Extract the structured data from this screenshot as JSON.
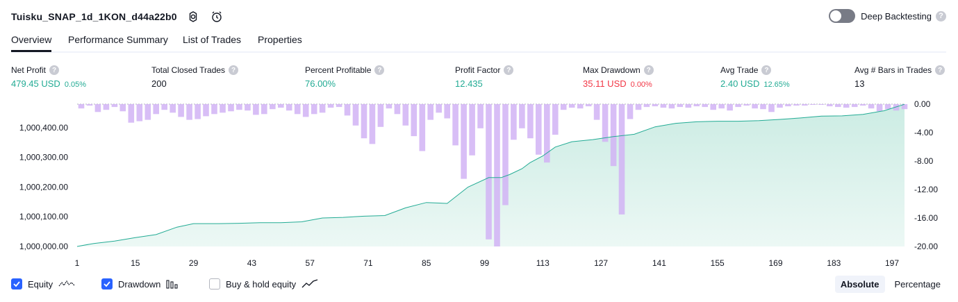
{
  "header": {
    "title": "Tuisku_SNAP_1d_1KON_d44a22b0",
    "deep_backtesting_label": "Deep Backtesting",
    "deep_backtesting_on": false
  },
  "tabs": [
    {
      "label": "Overview",
      "active": true
    },
    {
      "label": "Performance Summary",
      "active": false
    },
    {
      "label": "List of Trades",
      "active": false
    },
    {
      "label": "Properties",
      "active": false
    }
  ],
  "metrics": [
    {
      "label": "Net Profit",
      "value": "479.45 USD",
      "pct": "0.05%",
      "color": "#22ab94"
    },
    {
      "label": "Total Closed Trades",
      "value": "200",
      "pct": "",
      "color": "#131722"
    },
    {
      "label": "Percent Profitable",
      "value": "76.00%",
      "pct": "",
      "color": "#22ab94"
    },
    {
      "label": "Profit Factor",
      "value": "12.435",
      "pct": "",
      "color": "#22ab94"
    },
    {
      "label": "Max Drawdown",
      "value": "35.11 USD",
      "pct": "0.00%",
      "color": "#f23645"
    },
    {
      "label": "Avg Trade",
      "value": "2.40 USD",
      "pct": "12.65%",
      "color": "#22ab94"
    },
    {
      "label": "Avg # Bars in Trades",
      "value": "13",
      "pct": "",
      "color": "#131722"
    }
  ],
  "legend": {
    "equity_label": "Equity",
    "equity_checked": true,
    "drawdown_label": "Drawdown",
    "drawdown_checked": true,
    "buyhold_label": "Buy & hold equity",
    "buyhold_checked": false
  },
  "view_toggle": {
    "absolute_label": "Absolute",
    "percentage_label": "Percentage",
    "active": "Absolute"
  },
  "icons": {
    "settings": "gear-icon",
    "snapshot": "camera-refresh-icon",
    "help": "question-icon"
  },
  "colors": {
    "equity_line": "#22ab94",
    "equity_fill": "#c9ebe2",
    "drawdown_bar": "#d1b3f5",
    "positive": "#22ab94",
    "negative": "#f23645",
    "accent": "#2962ff"
  },
  "chart_data": {
    "type": "area",
    "x_ticks": [
      1,
      15,
      29,
      43,
      57,
      71,
      85,
      99,
      113,
      127,
      141,
      155,
      169,
      183,
      197
    ],
    "xlim": [
      1,
      200
    ],
    "y_left_ticks": [
      "1,000,000.00",
      "1,000,100.00",
      "1,000,200.00",
      "1,000,300.00",
      "1,000,400.00"
    ],
    "y_left_lim": [
      1000000,
      1000479.45
    ],
    "y_right_ticks": [
      "0.00",
      "-4.00",
      "-8.00",
      "-12.00",
      "-16.00",
      "-20.00"
    ],
    "y_right_lim": [
      -20,
      0
    ],
    "series": [
      {
        "name": "Equity",
        "kind": "area",
        "x": [
          1,
          5,
          10,
          15,
          20,
          25,
          29,
          35,
          40,
          45,
          50,
          55,
          60,
          65,
          70,
          75,
          80,
          85,
          90,
          95,
          100,
          103,
          105,
          108,
          110,
          113,
          116,
          120,
          125,
          130,
          135,
          140,
          145,
          150,
          155,
          160,
          165,
          170,
          175,
          180,
          185,
          190,
          195,
          200
        ],
        "y": [
          1000000,
          1000010,
          1000018,
          1000030,
          1000040,
          1000065,
          1000077,
          1000077,
          1000078,
          1000080,
          1000080,
          1000083,
          1000096,
          1000098,
          1000102,
          1000104,
          1000130,
          1000148,
          1000145,
          1000200,
          1000232,
          1000232,
          1000242,
          1000262,
          1000283,
          1000305,
          1000335,
          1000353,
          1000360,
          1000370,
          1000378,
          1000403,
          1000415,
          1000420,
          1000422,
          1000422,
          1000424,
          1000428,
          1000433,
          1000439,
          1000440,
          1000445,
          1000457,
          1000479
        ]
      },
      {
        "name": "Drawdown",
        "kind": "bar",
        "x": [
          2,
          4,
          6,
          8,
          10,
          12,
          14,
          16,
          18,
          20,
          22,
          24,
          26,
          28,
          30,
          32,
          34,
          36,
          38,
          40,
          42,
          44,
          46,
          48,
          50,
          52,
          54,
          56,
          58,
          60,
          62,
          64,
          66,
          68,
          70,
          72,
          74,
          76,
          78,
          80,
          82,
          84,
          86,
          88,
          90,
          92,
          94,
          96,
          98,
          100,
          102,
          104,
          106,
          108,
          110,
          112,
          114,
          116,
          118,
          120,
          122,
          124,
          126,
          128,
          130,
          132,
          134,
          136,
          138,
          140,
          142,
          144,
          146,
          148,
          150,
          152,
          154,
          156,
          158,
          160,
          162,
          164,
          166,
          168,
          170,
          172,
          174,
          176,
          178,
          180,
          182,
          184,
          186,
          188,
          190,
          192,
          194,
          196,
          198,
          200
        ],
        "y": [
          -0.6,
          -0.2,
          -1.1,
          -0.8,
          -0.4,
          -1.0,
          -2.6,
          -2.4,
          -2.2,
          -1.4,
          -0.8,
          -1.2,
          -1.8,
          -2.2,
          -2.1,
          -1.7,
          -1.4,
          -1.2,
          -1.0,
          -0.8,
          -0.9,
          -1.5,
          -1.4,
          -0.7,
          -0.5,
          -0.9,
          -1.4,
          -1.8,
          -1.4,
          -1.2,
          -0.5,
          -0.4,
          -1.6,
          -3.0,
          -4.8,
          -5.6,
          -3.2,
          -0.6,
          -1.4,
          -3.0,
          -4.5,
          -6.6,
          -2.2,
          -1.2,
          -2.0,
          -5.8,
          -10.5,
          -7.2,
          -3.4,
          -19.0,
          -20.0,
          -14.2,
          -5.0,
          -3.4,
          -4.8,
          -7.1,
          -8.2,
          -4.3,
          -0.8,
          -0.5,
          -0.6,
          -0.3,
          -2.2,
          -5.3,
          -8.7,
          -15.5,
          -2.1,
          -0.8,
          -0.4,
          -0.3,
          -0.5,
          -0.6,
          -0.4,
          -0.5,
          -0.3,
          -0.4,
          -0.8,
          -0.6,
          -0.9,
          -0.4,
          -0.2,
          -0.6,
          -0.7,
          -1.1,
          -0.5,
          -0.3,
          -0.2,
          -0.2,
          -0.1,
          -0.1,
          -0.3,
          -0.4,
          -0.5,
          -0.4,
          -0.2,
          -0.6,
          -1.0,
          -0.7,
          -0.9,
          -0.7
        ]
      }
    ]
  }
}
